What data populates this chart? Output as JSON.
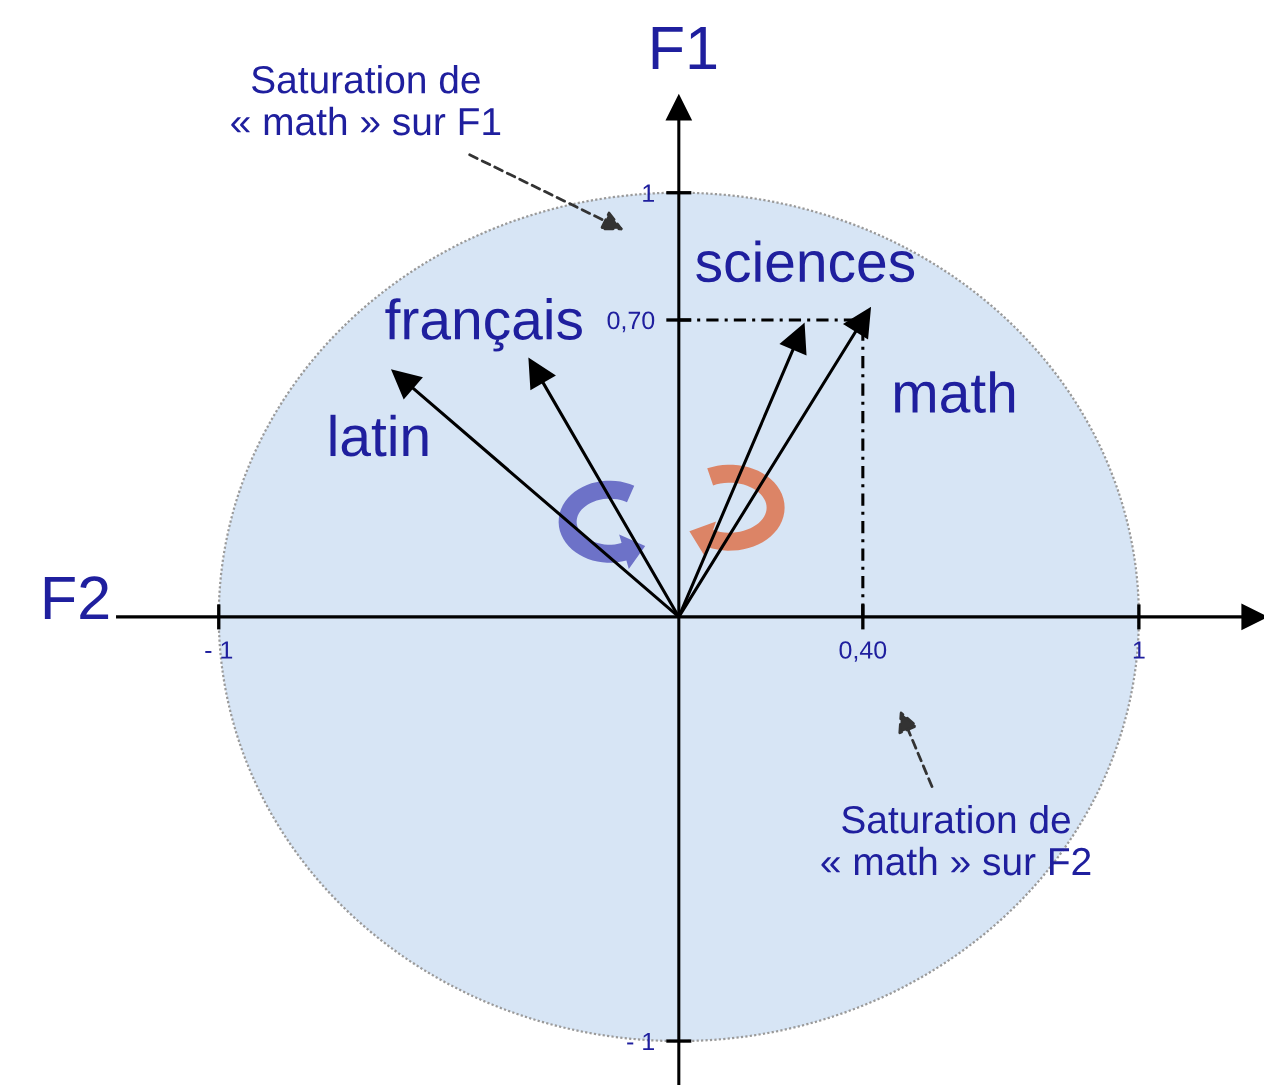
{
  "chart_data": {
    "type": "line",
    "xlabel": "F2",
    "ylabel": "F1",
    "xlim": [
      -1.22,
      1.25
    ],
    "ylim": [
      -1.1,
      1.2
    ],
    "xticks": [
      {
        "value": -1,
        "label": "- 1"
      },
      {
        "value": 0.4,
        "label": "0,40"
      },
      1
    ],
    "yticks": [
      {
        "value": -1,
        "label": "- 1"
      },
      {
        "value": 0.7,
        "label": "0,70"
      },
      1
    ],
    "marker": "triangle",
    "line_style": "solid",
    "series": [
      {
        "name": "latin",
        "color": "#000000",
        "x": [
          0,
          -0.6
        ],
        "values": [
          0,
          0.56
        ]
      },
      {
        "name": "français",
        "color": "#000000",
        "x": [
          0,
          -0.31
        ],
        "values": [
          0,
          0.58
        ]
      },
      {
        "name": "sciences",
        "color": "#000000",
        "x": [
          0,
          0.26
        ],
        "values": [
          0,
          0.66
        ]
      },
      {
        "name": "math",
        "color": "#000000",
        "x": [
          0,
          0.4
        ],
        "values": [
          0,
          0.7
        ]
      },
      {
        "color": "#000000",
        "x": [
          0,
          0.4,
          0.4
        ],
        "values": [
          0.7,
          0.7,
          0
        ],
        "marker": "none",
        "line_style": "dashed"
      }
    ],
    "annotations": [
      "Saturation de\n« math » sur F1",
      "Saturation de\n« math » sur F2"
    ]
  }
}
